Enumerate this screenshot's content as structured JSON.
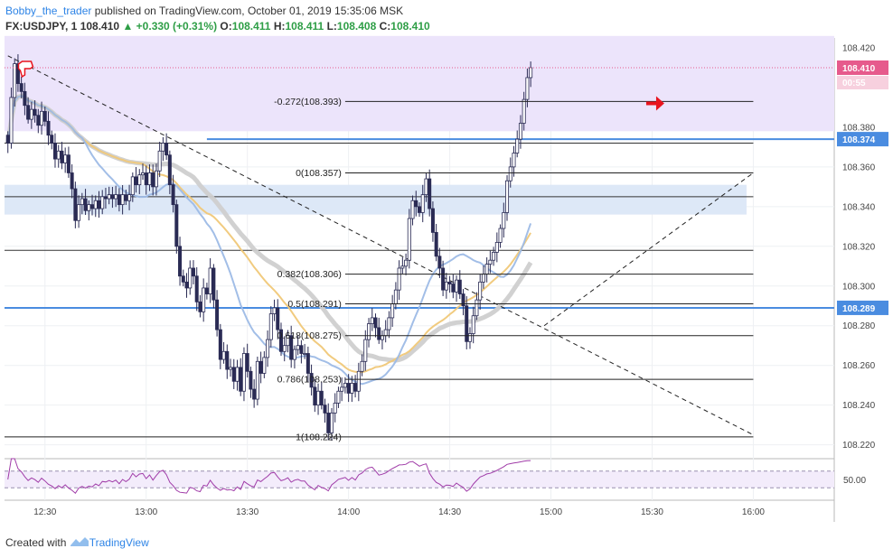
{
  "header": {
    "author": "Bobby_the_trader",
    "published": "published on TradingView.com, October 01, 2019 15:35:06 MSK",
    "symbol": "FX:USDJPY, 1",
    "last": "108.410",
    "change": "+0.330 (+0.31%)",
    "open_label": "O:",
    "open": "108.411",
    "high_label": "H:",
    "high": "108.411",
    "low_label": "L:",
    "low": "108.408",
    "close_label": "C:",
    "close": "108.410"
  },
  "footer": {
    "created_with": "Created with",
    "brand": "TradingView"
  },
  "colors": {
    "band_purple": "#ece4fb",
    "band_blue": "#dde8f7",
    "hline_blue": "#4a8ce0",
    "candle": "#2a2b54",
    "ema_gold": "#f0c878",
    "ema_grey": "#cfcfcf",
    "ma_blue": "#9dbbe6",
    "rsi": "#a03ca8",
    "price_tag": "#e65a8c",
    "arrow": "#e8141e"
  },
  "chart_data": {
    "type": "candlestick",
    "symbol": "FX:USDJPY",
    "timeframe": "1",
    "x_ticks": [
      "12:30",
      "13:00",
      "13:30",
      "14:00",
      "14:30",
      "15:00",
      "15:30",
      "16:00"
    ],
    "x_tick_minutes": [
      750,
      780,
      810,
      840,
      870,
      900,
      930,
      960
    ],
    "y_ticks": [
      "108.420",
      "108.380",
      "108.360",
      "108.340",
      "108.320",
      "108.300",
      "108.280",
      "108.260",
      "108.240",
      "108.220"
    ],
    "y_tick_values": [
      108.42,
      108.38,
      108.36,
      108.34,
      108.32,
      108.3,
      108.28,
      108.26,
      108.24,
      108.22
    ],
    "ylim": [
      108.213,
      108.425
    ],
    "xlim_minutes": [
      738,
      984
    ],
    "current_price": {
      "label": "108.410",
      "value": 108.41,
      "countdown": "00:55"
    },
    "horizontal_levels": [
      {
        "label": "108.374",
        "value": 108.374
      },
      {
        "label": "108.289",
        "value": 108.289
      }
    ],
    "supply_zone": [
      108.378,
      108.426
    ],
    "demand_zone": [
      108.336,
      108.351
    ],
    "fibonacci": [
      {
        "label": "-0.272(108.393)",
        "value": 108.393
      },
      {
        "label": "0(108.357)",
        "value": 108.357
      },
      {
        "label": "0.382(108.306)",
        "value": 108.306
      },
      {
        "label": "0.5(108.291)",
        "value": 108.291
      },
      {
        "label": "0.618(108.275)",
        "value": 108.275
      },
      {
        "label": "0.786(108.253)",
        "value": 108.253
      },
      {
        "label": "1(108.224)",
        "value": 108.224
      }
    ],
    "extra_levels": [
      108.372,
      108.345,
      108.318
    ],
    "trendlines": [
      {
        "style": "dashed",
        "from": [
          739,
          108.416
        ],
        "to": [
          960,
          108.225
        ]
      },
      {
        "style": "dashed",
        "from": [
          898,
          108.28
        ],
        "to": [
          960,
          108.357
        ]
      }
    ],
    "close_series": {
      "start_minute": 739,
      "values": [
        108.372,
        108.395,
        108.412,
        108.402,
        108.398,
        108.391,
        108.384,
        108.389,
        108.386,
        108.381,
        108.388,
        108.383,
        108.376,
        108.372,
        108.364,
        108.368,
        108.362,
        108.366,
        108.357,
        108.349,
        108.333,
        108.341,
        108.344,
        108.338,
        108.341,
        108.339,
        108.343,
        108.339,
        108.345,
        108.344,
        108.346,
        108.344,
        108.346,
        108.341,
        108.346,
        108.343,
        108.346,
        108.355,
        108.351,
        108.356,
        108.357,
        108.351,
        108.357,
        108.35,
        108.358,
        108.368,
        108.372,
        108.366,
        108.351,
        108.341,
        108.32,
        108.305,
        108.302,
        108.299,
        108.309,
        108.305,
        108.292,
        108.287,
        108.299,
        108.296,
        108.309,
        108.293,
        108.278,
        108.263,
        108.267,
        108.258,
        108.259,
        108.252,
        108.259,
        108.247,
        108.266,
        108.257,
        108.248,
        108.243,
        108.262,
        108.256,
        108.264,
        108.273,
        108.286,
        108.289,
        108.278,
        108.267,
        108.27,
        108.275,
        108.263,
        108.268,
        108.27,
        108.266,
        108.266,
        108.256,
        108.249,
        108.24,
        108.247,
        108.24,
        108.236,
        108.226,
        108.236,
        108.241,
        108.247,
        108.249,
        108.251,
        108.246,
        108.251,
        108.247,
        108.257,
        108.262,
        108.273,
        108.281,
        108.284,
        108.279,
        108.273,
        108.275,
        108.278,
        108.284,
        108.291,
        108.298,
        108.309,
        108.31,
        108.313,
        108.334,
        108.343,
        108.34,
        108.337,
        108.346,
        108.354,
        108.339,
        108.327,
        108.315,
        108.309,
        108.298,
        108.302,
        108.301,
        108.297,
        108.303,
        108.296,
        108.29,
        108.272,
        108.276,
        108.285,
        108.293,
        108.302,
        108.306,
        108.311,
        108.313,
        108.317,
        108.322,
        108.329,
        108.337,
        108.353,
        108.36,
        108.367,
        108.374,
        108.382,
        108.394,
        108.405,
        108.41
      ]
    },
    "rsi": {
      "label": "50.00",
      "level": 50,
      "band": [
        30,
        70
      ]
    }
  }
}
